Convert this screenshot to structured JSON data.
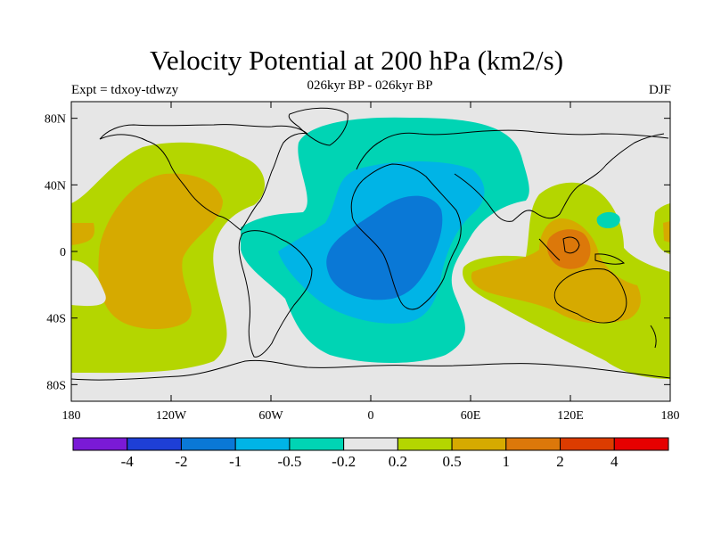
{
  "header": {
    "title": "Velocity Potential at 200 hPa (km2/s)",
    "subtitle": "026kyr BP - 026kyr BP",
    "left_label": "Expt = tdxoy-tdwzy",
    "right_label": "DJF"
  },
  "map": {
    "projection": "cylindrical equidistant",
    "lon_range": [
      -180,
      180
    ],
    "lat_range": [
      -90,
      90
    ],
    "lat_ticks": [
      {
        "lat": 80,
        "label": "80N"
      },
      {
        "lat": 40,
        "label": "40N"
      },
      {
        "lat": 0,
        "label": "0"
      },
      {
        "lat": -40,
        "label": "40S"
      },
      {
        "lat": -80,
        "label": "80S"
      }
    ],
    "lon_ticks": [
      {
        "lon": -180,
        "label": "180"
      },
      {
        "lon": -120,
        "label": "120W"
      },
      {
        "lon": -60,
        "label": "60W"
      },
      {
        "lon": 0,
        "label": "0"
      },
      {
        "lon": 60,
        "label": "60E"
      },
      {
        "lon": 120,
        "label": "120E"
      },
      {
        "lon": 180,
        "label": "180"
      }
    ],
    "background_color": "#e6e6e6",
    "coastline_color": "#000000"
  },
  "colorbar": {
    "colors": [
      "#7a1ad6",
      "#1e3fd6",
      "#0a78d6",
      "#00b4e6",
      "#00d4b4",
      "#e6e6e6",
      "#b4d600",
      "#d6aa00",
      "#dc780a",
      "#dc3c00",
      "#e60000"
    ],
    "labels": [
      "-4",
      "-2",
      "-1",
      "-0.5",
      "-0.2",
      "0.2",
      "0.5",
      "1",
      "2",
      "4"
    ]
  }
}
